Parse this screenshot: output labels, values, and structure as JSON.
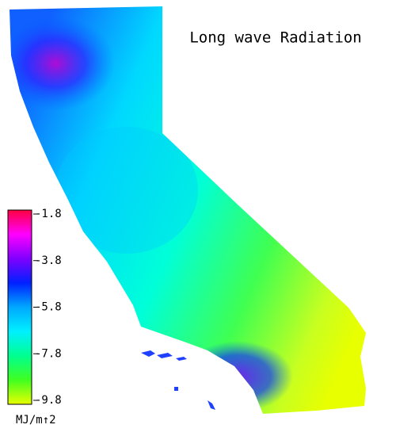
{
  "title": "Long wave Radiation",
  "colorbar": {
    "lim": [
      -9.8,
      -1.8
    ],
    "ticks": [
      -1.8,
      -3.8,
      -5.8,
      -7.8,
      -9.8
    ],
    "unit": "MJ/m↑2",
    "colors": [
      "#e8ff00",
      "#40ff20",
      "#00ff90",
      "#00f0ff",
      "#00a8ff",
      "#0020ff",
      "#8000ff",
      "#ff00ff",
      "#ff0040"
    ]
  }
}
